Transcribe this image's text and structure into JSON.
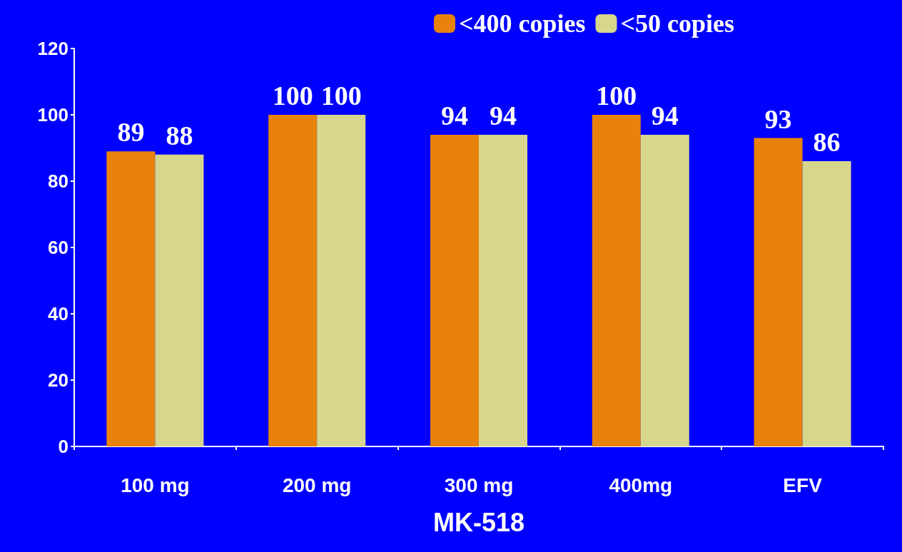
{
  "chart_data": {
    "type": "bar",
    "xlabel": "MK-518",
    "categories": [
      "100 mg",
      "200 mg",
      "300 mg",
      "400mg",
      "EFV"
    ],
    "series": [
      {
        "name": "<400 copies",
        "color": "#e8820c",
        "values": [
          89,
          100,
          94,
          100,
          93
        ]
      },
      {
        "name": "<50 copies",
        "color": "#d6d68c",
        "values": [
          88,
          100,
          94,
          94,
          86
        ]
      }
    ],
    "ylim": [
      0,
      120
    ],
    "yticks": [
      0,
      20,
      40,
      60,
      80,
      100,
      120
    ],
    "grid": false,
    "legend": "top right",
    "data_labels": true
  }
}
